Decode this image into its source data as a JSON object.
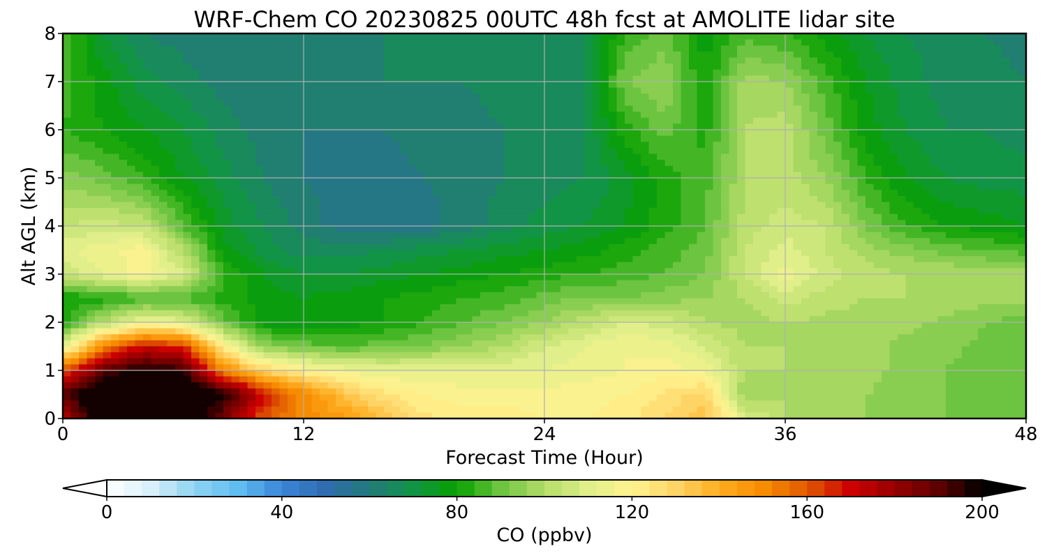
{
  "chart_data": {
    "type": "heatmap",
    "title": "WRF-Chem CO  20230825 00UTC 48h fcst at AMOLITE lidar site",
    "xlabel": "Forecast Time (Hour)",
    "ylabel": "Alt AGL (km)",
    "xlim": [
      0,
      48
    ],
    "ylim": [
      0,
      8
    ],
    "xticks": [
      0,
      12,
      24,
      36,
      48
    ],
    "yticks": [
      0,
      1,
      2,
      3,
      4,
      5,
      6,
      7,
      8
    ],
    "grid": true,
    "x": [
      0,
      2,
      4,
      6,
      8,
      10,
      12,
      14,
      16,
      18,
      20,
      22,
      24,
      26,
      28,
      30,
      32,
      34,
      36,
      38,
      40,
      42,
      44,
      46,
      48
    ],
    "y": [
      0,
      0.5,
      1,
      1.5,
      2,
      2.5,
      3,
      3.5,
      4,
      5,
      6,
      7,
      8
    ],
    "z": [
      [
        175,
        205,
        205,
        205,
        185,
        160,
        150,
        145,
        135,
        125,
        122,
        122,
        120,
        120,
        122,
        128,
        135,
        110,
        100,
        98,
        96,
        95,
        92,
        90,
        88
      ],
      [
        190,
        210,
        210,
        210,
        200,
        170,
        150,
        135,
        125,
        120,
        118,
        118,
        118,
        118,
        120,
        125,
        130,
        95,
        100,
        98,
        96,
        95,
        92,
        90,
        88
      ],
      [
        160,
        190,
        200,
        195,
        150,
        130,
        120,
        115,
        112,
        112,
        112,
        112,
        112,
        114,
        116,
        118,
        115,
        100,
        100,
        99,
        97,
        95,
        92,
        90,
        88
      ],
      [
        110,
        150,
        170,
        165,
        120,
        95,
        90,
        88,
        90,
        92,
        96,
        100,
        108,
        112,
        116,
        114,
        108,
        100,
        100,
        99,
        97,
        95,
        93,
        91,
        88
      ],
      [
        82,
        100,
        115,
        110,
        90,
        78,
        76,
        78,
        80,
        84,
        88,
        92,
        96,
        102,
        108,
        106,
        100,
        98,
        100,
        99,
        98,
        97,
        95,
        92,
        90
      ],
      [
        80,
        82,
        85,
        86,
        82,
        78,
        76,
        78,
        80,
        82,
        84,
        86,
        90,
        92,
        92,
        94,
        96,
        100,
        106,
        102,
        100,
        100,
        99,
        98,
        97
      ],
      [
        105,
        112,
        118,
        108,
        85,
        76,
        72,
        72,
        74,
        76,
        78,
        80,
        82,
        84,
        86,
        88,
        92,
        104,
        114,
        106,
        102,
        100,
        100,
        99,
        98
      ],
      [
        110,
        115,
        118,
        100,
        78,
        70,
        66,
        66,
        68,
        70,
        72,
        74,
        76,
        78,
        82,
        86,
        90,
        104,
        110,
        104,
        98,
        94,
        90,
        88,
        86
      ],
      [
        104,
        106,
        104,
        88,
        74,
        68,
        62,
        58,
        56,
        58,
        62,
        66,
        70,
        72,
        76,
        82,
        88,
        102,
        106,
        104,
        92,
        84,
        80,
        78,
        76
      ],
      [
        94,
        90,
        84,
        76,
        70,
        64,
        60,
        58,
        58,
        60,
        62,
        64,
        66,
        68,
        74,
        82,
        86,
        100,
        102,
        96,
        84,
        76,
        72,
        70,
        70
      ],
      [
        84,
        80,
        76,
        72,
        66,
        62,
        60,
        60,
        60,
        62,
        62,
        64,
        66,
        68,
        82,
        90,
        82,
        100,
        102,
        90,
        78,
        72,
        68,
        68,
        66
      ],
      [
        86,
        78,
        70,
        66,
        62,
        62,
        60,
        62,
        64,
        64,
        64,
        66,
        66,
        68,
        92,
        96,
        80,
        98,
        96,
        86,
        76,
        70,
        66,
        66,
        64
      ],
      [
        88,
        72,
        64,
        62,
        60,
        60,
        62,
        64,
        64,
        64,
        64,
        66,
        66,
        68,
        84,
        90,
        78,
        86,
        84,
        78,
        72,
        68,
        66,
        64,
        62
      ]
    ],
    "colorbar": {
      "label": "CO  (ppbv)",
      "vmin": 0,
      "vmax": 200,
      "ticks": [
        0,
        40,
        80,
        120,
        160,
        200
      ],
      "extend": "both",
      "colors": [
        "#ffffff",
        "#d8f0fb",
        "#8fd3f2",
        "#5fbdf0",
        "#3b85d8",
        "#2f6db0",
        "#237a7a",
        "#129446",
        "#08a000",
        "#6cc440",
        "#b4dc68",
        "#e0ef8a",
        "#fff390",
        "#ffd466",
        "#ffad20",
        "#f78c00",
        "#e05a00",
        "#cc0000",
        "#980000",
        "#5e0000",
        "#000000"
      ]
    }
  }
}
